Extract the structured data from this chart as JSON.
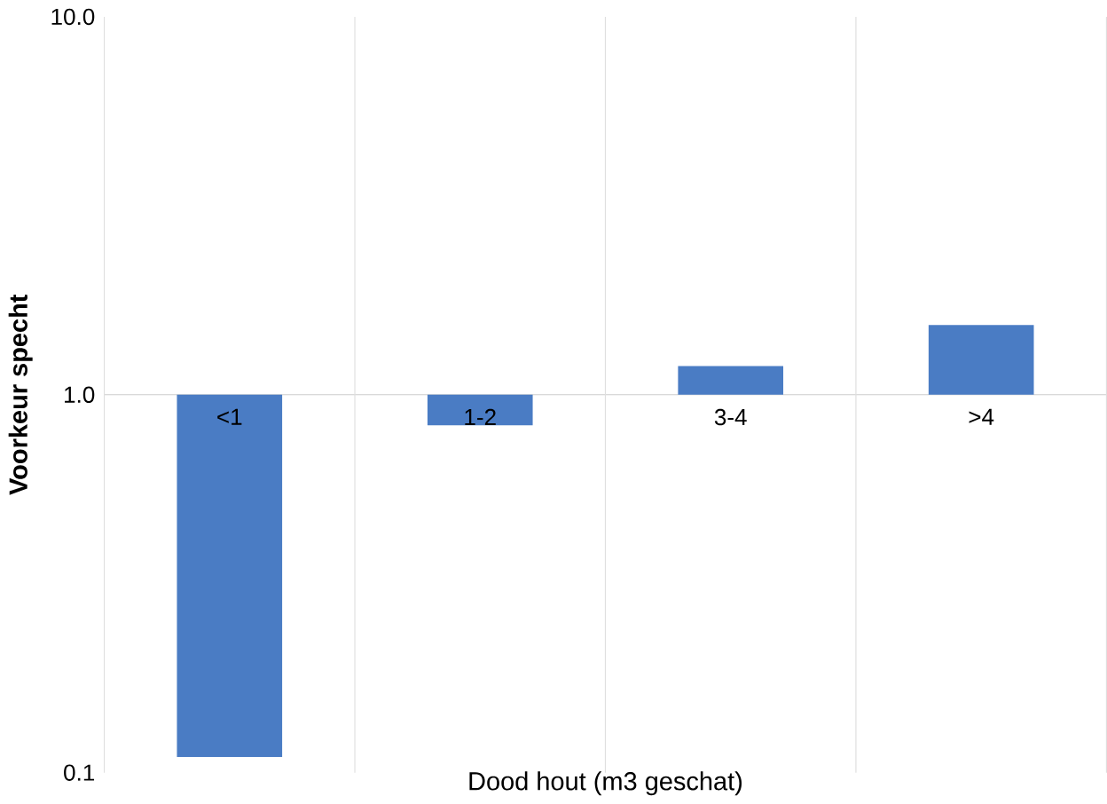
{
  "chart_data": {
    "type": "bar",
    "xlabel": "Dood hout (m3 geschat)",
    "ylabel": "Voorkeur specht",
    "categories": [
      "<1",
      "1-2",
      "3-4",
      ">4"
    ],
    "base": [
      1,
      1,
      1,
      1
    ],
    "values": [
      -0.89,
      -0.17,
      0.19,
      0.53
    ],
    "color": "#4a7cc4",
    "log": true,
    "ylim": [
      0.1,
      10
    ],
    "yticks": [
      {
        "value": 0.1,
        "label": "0.1"
      },
      {
        "value": 1,
        "label": "1.0"
      },
      {
        "value": 10,
        "label": "10.0"
      }
    ],
    "grid": "x"
  }
}
